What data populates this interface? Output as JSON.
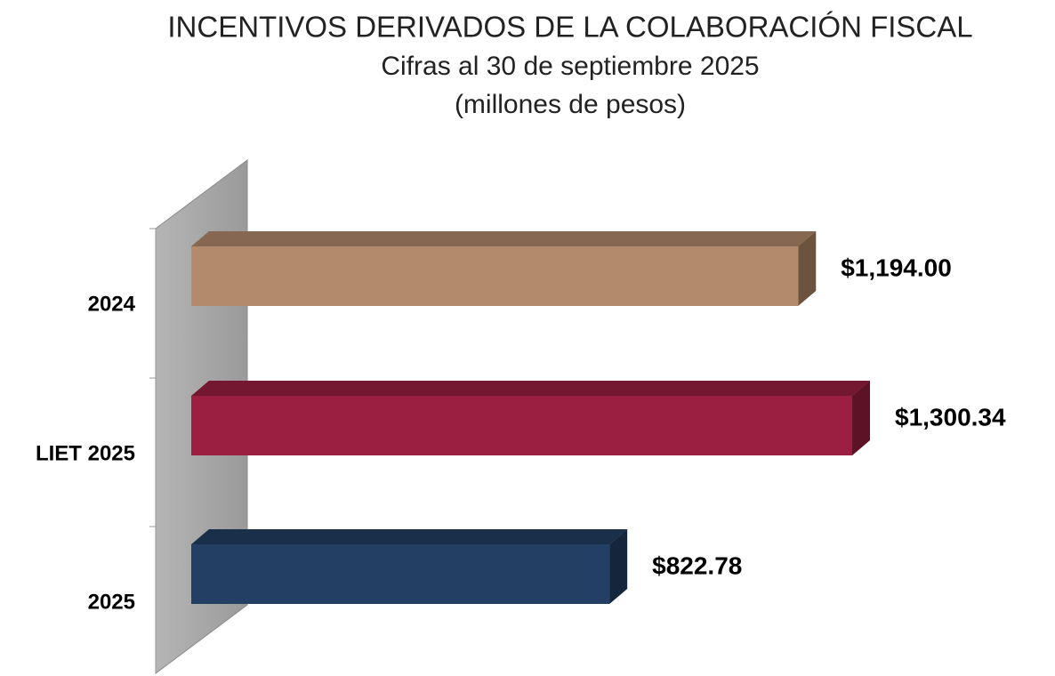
{
  "chart_data": {
    "type": "bar3d_horizontal",
    "title": "INCENTIVOS DERIVADOS DE LA COLABORACIÓN FISCAL",
    "subtitle": [
      "Cifras al 30 de septiembre 2025",
      "(millones de pesos)"
    ],
    "categories": [
      "2024",
      "LIET 2025",
      "2025"
    ],
    "values": [
      1194.0,
      1300.34,
      822.78
    ],
    "value_labels": [
      "$1,194.00",
      "$1,300.34",
      "$822.78"
    ],
    "colors": [
      "#b38a6c",
      "#9b1f40",
      "#233f63"
    ]
  }
}
